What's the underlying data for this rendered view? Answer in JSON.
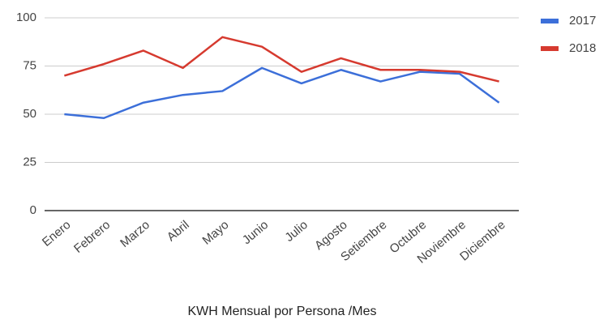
{
  "chart_data": {
    "type": "line",
    "x_label": "KWH Mensual por Persona /Mes",
    "categories": [
      "Enero",
      "Febrero",
      "Marzo",
      "Abril",
      "Mayo",
      "Junio",
      "Julio",
      "Agosto",
      "Setiembre",
      "Octubre",
      "Noviembre",
      "Diciembre"
    ],
    "series": [
      {
        "name": "2017",
        "color": "#3c6fd9",
        "values": [
          50,
          48,
          56,
          60,
          62,
          74,
          66,
          73,
          67,
          72,
          71,
          56
        ]
      },
      {
        "name": "2018",
        "color": "#d63a2f",
        "values": [
          70,
          76,
          83,
          74,
          90,
          85,
          72,
          79,
          73,
          73,
          72,
          67
        ]
      }
    ],
    "ylim": [
      0,
      100
    ],
    "yticks": [
      0,
      25,
      50,
      75,
      100
    ],
    "grid": true,
    "legend": "right"
  }
}
